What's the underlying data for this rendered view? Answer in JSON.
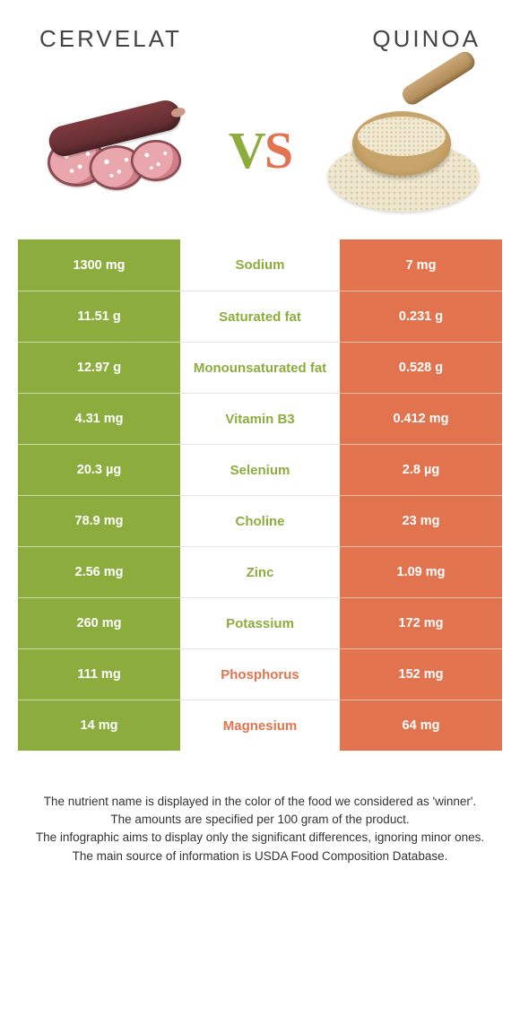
{
  "colors": {
    "left": "#8cad3e",
    "right": "#e2734f"
  },
  "header": {
    "left_title": "Cervelat",
    "right_title": "Quinoa",
    "vs_v": "V",
    "vs_s": "S"
  },
  "rows": [
    {
      "left": "1300 mg",
      "label": "Sodium",
      "right": "7 mg",
      "winner": "left"
    },
    {
      "left": "11.51 g",
      "label": "Saturated fat",
      "right": "0.231 g",
      "winner": "left"
    },
    {
      "left": "12.97 g",
      "label": "Monounsaturated fat",
      "right": "0.528 g",
      "winner": "left"
    },
    {
      "left": "4.31 mg",
      "label": "Vitamin B3",
      "right": "0.412 mg",
      "winner": "left"
    },
    {
      "left": "20.3 µg",
      "label": "Selenium",
      "right": "2.8 µg",
      "winner": "left"
    },
    {
      "left": "78.9 mg",
      "label": "Choline",
      "right": "23 mg",
      "winner": "left"
    },
    {
      "left": "2.56 mg",
      "label": "Zinc",
      "right": "1.09 mg",
      "winner": "left"
    },
    {
      "left": "260 mg",
      "label": "Potassium",
      "right": "172 mg",
      "winner": "left"
    },
    {
      "left": "111 mg",
      "label": "Phosphorus",
      "right": "152 mg",
      "winner": "right"
    },
    {
      "left": "14 mg",
      "label": "Magnesium",
      "right": "64 mg",
      "winner": "right"
    }
  ],
  "footer": [
    "The nutrient name is displayed in the color of the food we considered as 'winner'.",
    "The amounts are specified per 100 gram of the product.",
    "The infographic aims to display only the significant differences, ignoring minor ones.",
    "The main source of information is USDA Food Composition Database."
  ]
}
